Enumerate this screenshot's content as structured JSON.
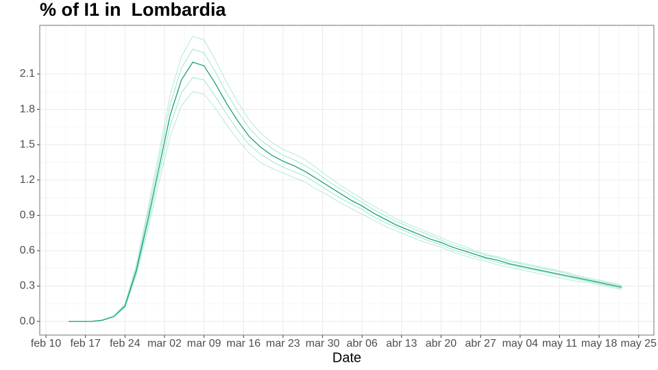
{
  "chart_data": {
    "type": "line",
    "title": "% of I1 in  Lombardia",
    "xlabel": "Date",
    "x": [
      45,
      47,
      49,
      51,
      53,
      55,
      57,
      59,
      61,
      63,
      65,
      67,
      69,
      71,
      73,
      75,
      77,
      79,
      81,
      83,
      85,
      87,
      89,
      91,
      93,
      95,
      97,
      99,
      101,
      103,
      105,
      107,
      109,
      111,
      113,
      115,
      117,
      119,
      121,
      123,
      125,
      127,
      129,
      131,
      133,
      135,
      137,
      139,
      141,
      143
    ],
    "series": [
      {
        "color": "#a6e6d2",
        "values": [
          0,
          0,
          0,
          0.01,
          0.05,
          0.15,
          0.48,
          0.94,
          1.43,
          1.92,
          2.25,
          2.42,
          2.39,
          2.22,
          2.03,
          1.86,
          1.71,
          1.6,
          1.52,
          1.46,
          1.42,
          1.37,
          1.3,
          1.23,
          1.16,
          1.1,
          1.04,
          0.98,
          0.93,
          0.87,
          0.83,
          0.79,
          0.75,
          0.71,
          0.67,
          0.64,
          0.6,
          0.57,
          0.55,
          0.52,
          0.5,
          0.48,
          0.46,
          0.44,
          0.42,
          0.39,
          0.37,
          0.35,
          0.33,
          0.31
        ]
      },
      {
        "color": "#8fdfc6",
        "values": [
          0,
          0,
          0,
          0.01,
          0.04,
          0.14,
          0.45,
          0.9,
          1.37,
          1.84,
          2.15,
          2.31,
          2.28,
          2.12,
          1.94,
          1.78,
          1.64,
          1.54,
          1.47,
          1.41,
          1.37,
          1.32,
          1.26,
          1.19,
          1.13,
          1.07,
          1.01,
          0.95,
          0.9,
          0.85,
          0.81,
          0.77,
          0.73,
          0.69,
          0.65,
          0.62,
          0.59,
          0.56,
          0.54,
          0.51,
          0.49,
          0.47,
          0.45,
          0.43,
          0.41,
          0.38,
          0.36,
          0.34,
          0.32,
          0.3
        ]
      },
      {
        "color": "#8fdfc6",
        "values": [
          0,
          0,
          0,
          0.01,
          0.04,
          0.12,
          0.41,
          0.81,
          1.24,
          1.66,
          1.94,
          2.07,
          2.05,
          1.91,
          1.76,
          1.62,
          1.5,
          1.42,
          1.36,
          1.31,
          1.27,
          1.23,
          1.17,
          1.11,
          1.05,
          1.0,
          0.95,
          0.89,
          0.84,
          0.8,
          0.76,
          0.72,
          0.68,
          0.65,
          0.61,
          0.58,
          0.55,
          0.53,
          0.5,
          0.48,
          0.46,
          0.44,
          0.42,
          0.4,
          0.38,
          0.36,
          0.34,
          0.32,
          0.3,
          0.28
        ]
      },
      {
        "color": "#a6e6d2",
        "values": [
          0,
          0,
          0,
          0.01,
          0.04,
          0.12,
          0.39,
          0.77,
          1.17,
          1.57,
          1.83,
          1.95,
          1.93,
          1.81,
          1.67,
          1.54,
          1.43,
          1.35,
          1.3,
          1.26,
          1.22,
          1.18,
          1.12,
          1.07,
          1.01,
          0.96,
          0.91,
          0.86,
          0.81,
          0.77,
          0.73,
          0.69,
          0.66,
          0.63,
          0.59,
          0.56,
          0.53,
          0.51,
          0.48,
          0.46,
          0.44,
          0.42,
          0.4,
          0.38,
          0.36,
          0.34,
          0.33,
          0.31,
          0.29,
          0.27
        ]
      },
      {
        "color": "#14a07f",
        "values": [
          0,
          0,
          0,
          0.01,
          0.04,
          0.13,
          0.43,
          0.85,
          1.3,
          1.75,
          2.05,
          2.2,
          2.17,
          2.02,
          1.85,
          1.7,
          1.57,
          1.48,
          1.41,
          1.36,
          1.32,
          1.27,
          1.21,
          1.15,
          1.09,
          1.03,
          0.98,
          0.92,
          0.87,
          0.82,
          0.78,
          0.74,
          0.7,
          0.67,
          0.63,
          0.6,
          0.57,
          0.54,
          0.52,
          0.49,
          0.47,
          0.45,
          0.43,
          0.41,
          0.39,
          0.37,
          0.35,
          0.33,
          0.31,
          0.29
        ]
      }
    ],
    "xlim": [
      39.9,
      148.7
    ],
    "xticks": [
      {
        "value": 41,
        "label": "feb 10"
      },
      {
        "value": 48,
        "label": "feb 17"
      },
      {
        "value": 55,
        "label": "feb 24"
      },
      {
        "value": 62,
        "label": "mar 02"
      },
      {
        "value": 69,
        "label": "mar 09"
      },
      {
        "value": 76,
        "label": "mar 16"
      },
      {
        "value": 83,
        "label": "mar 23"
      },
      {
        "value": 90,
        "label": "mar 30"
      },
      {
        "value": 97,
        "label": "abr 06"
      },
      {
        "value": 104,
        "label": "abr 13"
      },
      {
        "value": 111,
        "label": "abr 20"
      },
      {
        "value": 118,
        "label": "abr 27"
      },
      {
        "value": 125,
        "label": "may 04"
      },
      {
        "value": 132,
        "label": "may 11"
      },
      {
        "value": 139,
        "label": "may 18"
      },
      {
        "value": 146,
        "label": "may 25"
      }
    ],
    "ylim": [
      -0.116,
      2.513
    ],
    "yticks": [
      {
        "value": 0,
        "label": "0.0"
      },
      0.3,
      0.6,
      0.9,
      1.2,
      1.5,
      1.8,
      2.1
    ],
    "grid": true
  }
}
